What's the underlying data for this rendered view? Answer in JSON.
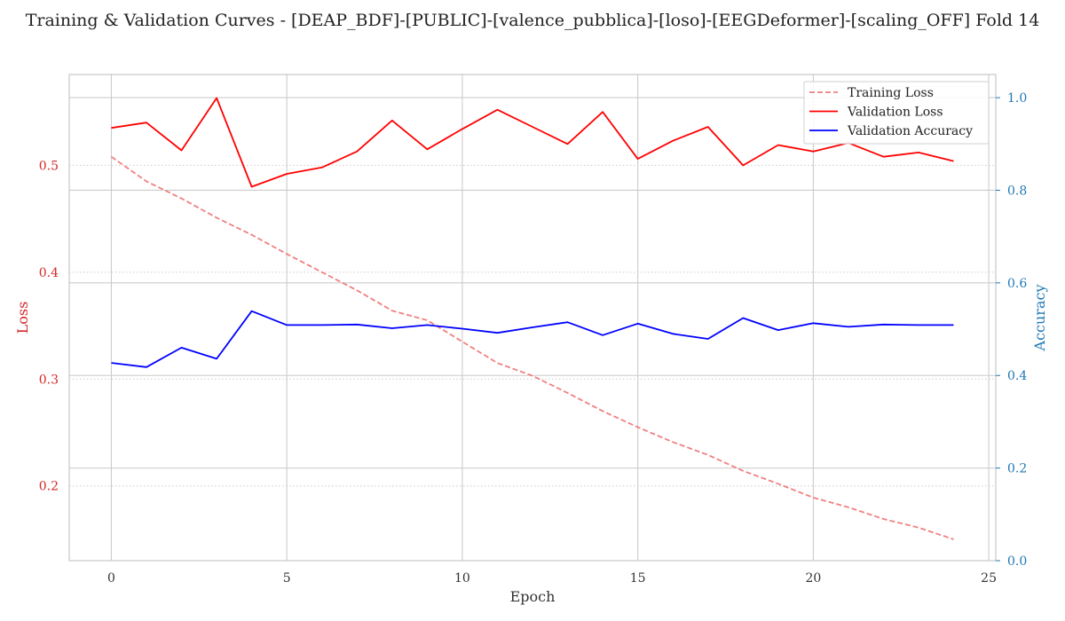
{
  "chart_data": {
    "type": "line",
    "title": "Training & Validation Curves - [DEAP_BDF]-[PUBLIC]-[valence_pubblica]-[loso]-[EEGDeformer]-[scaling_OFF] Fold 14",
    "xlabel": "Epoch",
    "ylabel_left": "Loss",
    "ylabel_right": "Accuracy",
    "xlim": [
      -1.2,
      25.2
    ],
    "ylim_left": [
      0.13,
      0.585
    ],
    "ylim_right": [
      0.0,
      1.05
    ],
    "x_ticks": [
      0,
      5,
      10,
      15,
      20,
      25
    ],
    "y_ticks_left": [
      0.2,
      0.3,
      0.4,
      0.5
    ],
    "y_ticks_right": [
      0.0,
      0.2,
      0.4,
      0.6,
      0.8,
      1.0
    ],
    "x_tick_labels": [
      "0",
      "5",
      "10",
      "15",
      "20",
      "25"
    ],
    "y_tick_labels_left": [
      "0.2",
      "0.3",
      "0.4",
      "0.5"
    ],
    "y_tick_labels_right": [
      "0.0",
      "0.2",
      "0.4",
      "0.6",
      "0.8",
      "1.0"
    ],
    "grid": true,
    "legend_position": "top-right",
    "x": [
      0,
      1,
      2,
      3,
      4,
      5,
      6,
      7,
      8,
      9,
      10,
      11,
      12,
      13,
      14,
      15,
      16,
      17,
      18,
      19,
      20,
      21,
      22,
      23,
      24
    ],
    "series": [
      {
        "name": "Training Loss",
        "axis": "left",
        "color": "#f08080",
        "dash": true,
        "values": [
          0.508,
          0.485,
          0.469,
          0.451,
          0.435,
          0.417,
          0.4,
          0.383,
          0.364,
          0.355,
          0.335,
          0.315,
          0.303,
          0.287,
          0.27,
          0.255,
          0.241,
          0.229,
          0.214,
          0.202,
          0.189,
          0.18,
          0.169,
          0.161,
          0.15
        ]
      },
      {
        "name": "Validation Loss",
        "axis": "left",
        "color": "#ff0000",
        "dash": false,
        "values": [
          0.535,
          0.54,
          0.514,
          0.563,
          0.48,
          0.492,
          0.498,
          0.513,
          0.542,
          0.515,
          0.534,
          0.552,
          0.536,
          0.52,
          0.55,
          0.506,
          0.523,
          0.536,
          0.5,
          0.519,
          0.513,
          0.521,
          0.508,
          0.512,
          0.504
        ]
      },
      {
        "name": "Validation Accuracy",
        "axis": "right",
        "color": "#0000ff",
        "dash": false,
        "values": [
          0.427,
          0.418,
          0.46,
          0.436,
          0.539,
          0.509,
          0.509,
          0.51,
          0.502,
          0.509,
          0.501,
          0.492,
          0.504,
          0.515,
          0.487,
          0.512,
          0.49,
          0.479,
          0.524,
          0.498,
          0.513,
          0.505,
          0.51,
          0.509,
          0.509
        ]
      }
    ]
  }
}
